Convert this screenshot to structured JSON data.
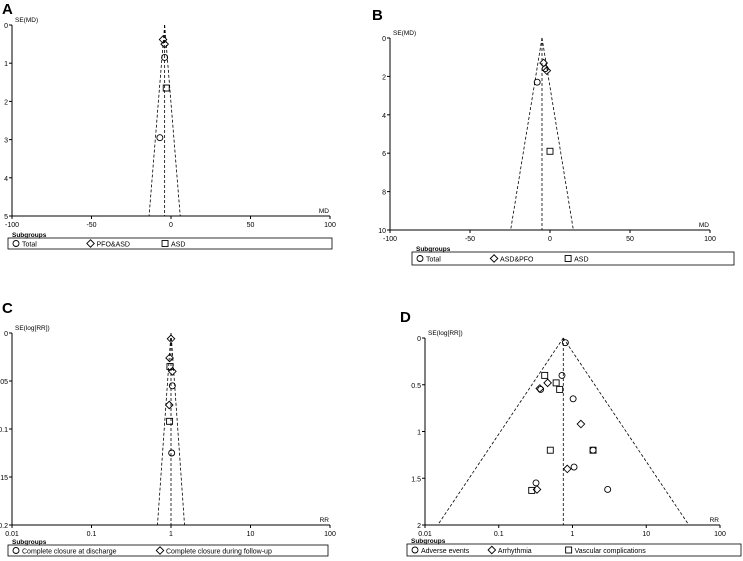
{
  "chart_data": [
    {
      "letter": "A",
      "type": "scatter",
      "funnel": true,
      "xscale": "linear",
      "xlim": [
        -100,
        100
      ],
      "ylim": [
        0,
        5
      ],
      "yreversed": true,
      "ylabel": "SE(MD)",
      "xlabel": "MD",
      "xticks": [
        -100,
        -50,
        0,
        50,
        100
      ],
      "xtick_labels": [
        "-100",
        "-50",
        "0",
        "50",
        "100"
      ],
      "yticks": [
        0,
        1,
        2,
        3,
        4,
        5
      ],
      "ytick_labels": [
        "0",
        "1",
        "2",
        "3",
        "4",
        "5"
      ],
      "pooled": -4,
      "legend_title": "Subgroups",
      "legend": [
        {
          "name": "Total",
          "marker": "circle"
        },
        {
          "name": "PFO&ASD",
          "marker": "diamond"
        },
        {
          "name": "ASD",
          "marker": "square"
        }
      ],
      "series": [
        {
          "name": "Total",
          "marker": "circle",
          "points": [
            {
              "x": -4,
              "y": 0.85
            },
            {
              "x": -7,
              "y": 2.95
            }
          ]
        },
        {
          "name": "PFO&ASD",
          "marker": "diamond",
          "points": [
            {
              "x": -5,
              "y": 0.38
            },
            {
              "x": -4,
              "y": 0.5
            }
          ]
        },
        {
          "name": "ASD",
          "marker": "square",
          "points": [
            {
              "x": -3,
              "y": 1.65
            }
          ]
        }
      ]
    },
    {
      "letter": "B",
      "type": "scatter",
      "funnel": true,
      "xscale": "linear",
      "xlim": [
        -100,
        100
      ],
      "ylim": [
        0,
        10
      ],
      "yreversed": true,
      "ylabel": "SE(MD)",
      "xlabel": "MD",
      "xticks": [
        -100,
        -50,
        0,
        50,
        100
      ],
      "xtick_labels": [
        "-100",
        "-50",
        "0",
        "50",
        "100"
      ],
      "yticks": [
        0,
        2,
        4,
        6,
        8,
        10
      ],
      "ytick_labels": [
        "0",
        "2",
        "4",
        "6",
        "8",
        "10"
      ],
      "pooled": -5,
      "legend_title": "Subgroups",
      "legend": [
        {
          "name": "Total",
          "marker": "circle"
        },
        {
          "name": "ASD&PFO",
          "marker": "diamond"
        },
        {
          "name": "ASD",
          "marker": "square"
        }
      ],
      "series": [
        {
          "name": "Total",
          "marker": "circle",
          "points": [
            {
              "x": -8,
              "y": 2.3
            },
            {
              "x": -3,
              "y": 1.6
            }
          ]
        },
        {
          "name": "ASD&PFO",
          "marker": "diamond",
          "points": [
            {
              "x": -4,
              "y": 1.3
            },
            {
              "x": -2,
              "y": 1.7
            }
          ]
        },
        {
          "name": "ASD",
          "marker": "square",
          "points": [
            {
              "x": 0,
              "y": 5.9
            }
          ]
        }
      ]
    },
    {
      "letter": "C",
      "type": "scatter",
      "funnel": true,
      "xscale": "log",
      "xlim": [
        0.01,
        100
      ],
      "ylim": [
        0,
        0.2
      ],
      "yreversed": true,
      "ylabel": "SE(log[RR])",
      "xlabel": "RR",
      "xticks": [
        0.01,
        0.1,
        1,
        10,
        100
      ],
      "xtick_labels": [
        "0.01",
        "0.1",
        "1",
        "10",
        "100"
      ],
      "yticks": [
        0,
        0.05,
        0.1,
        0.15,
        0.2
      ],
      "ytick_labels": [
        "0",
        "0.05",
        "0.1",
        "0.15",
        "0.2"
      ],
      "pooled": 1,
      "legend_title": "Subgroups",
      "legend": [
        {
          "name": "Complete closure at discharge",
          "marker": "circle"
        },
        {
          "name": "Complete closure during follow-up",
          "marker": "diamond"
        }
      ],
      "series": [
        {
          "name": "Complete closure at discharge",
          "marker": "circle",
          "points": [
            {
              "x": 1.04,
              "y": 0.055
            },
            {
              "x": 1.02,
              "y": 0.125
            }
          ]
        },
        {
          "name": "Complete closure during follow-up",
          "marker": "diamond",
          "points": [
            {
              "x": 1.0,
              "y": 0.006
            },
            {
              "x": 0.96,
              "y": 0.026
            },
            {
              "x": 1.04,
              "y": 0.04
            },
            {
              "x": 0.95,
              "y": 0.075
            }
          ]
        },
        {
          "name": "",
          "marker": "square",
          "points": [
            {
              "x": 0.97,
              "y": 0.035
            },
            {
              "x": 0.96,
              "y": 0.092
            }
          ]
        }
      ]
    },
    {
      "letter": "D",
      "type": "scatter",
      "funnel": true,
      "xscale": "log",
      "xlim": [
        0.01,
        100
      ],
      "ylim": [
        0,
        2
      ],
      "yreversed": true,
      "ylabel": "SE(log[RR])",
      "xlabel": "RR",
      "xticks": [
        0.01,
        0.1,
        1,
        10,
        100
      ],
      "xtick_labels": [
        "0.01",
        "0.1",
        "1",
        "10",
        "100"
      ],
      "yticks": [
        0,
        0.5,
        1,
        1.5,
        2
      ],
      "ytick_labels": [
        "0",
        "0.5",
        "1",
        "1.5",
        "2"
      ],
      "pooled": 0.75,
      "legend_title": "Subgroups",
      "legend": [
        {
          "name": "Adverse events",
          "marker": "circle"
        },
        {
          "name": "Arrhythmia",
          "marker": "diamond"
        },
        {
          "name": "Vascular complications",
          "marker": "square"
        }
      ],
      "series": [
        {
          "name": "Adverse events",
          "marker": "circle",
          "points": [
            {
              "x": 0.8,
              "y": 0.05
            },
            {
              "x": 0.72,
              "y": 0.4
            },
            {
              "x": 0.37,
              "y": 0.55
            },
            {
              "x": 1.02,
              "y": 0.65
            },
            {
              "x": 1.9,
              "y": 1.2
            },
            {
              "x": 1.05,
              "y": 1.38
            },
            {
              "x": 0.32,
              "y": 1.55
            },
            {
              "x": 3.0,
              "y": 1.62
            }
          ]
        },
        {
          "name": "Arrhythmia",
          "marker": "diamond",
          "points": [
            {
              "x": 0.46,
              "y": 0.48
            },
            {
              "x": 0.36,
              "y": 0.54
            },
            {
              "x": 1.3,
              "y": 0.92
            },
            {
              "x": 0.85,
              "y": 1.4
            },
            {
              "x": 0.33,
              "y": 1.62
            }
          ]
        },
        {
          "name": "Vascular complications",
          "marker": "square",
          "points": [
            {
              "x": 0.42,
              "y": 0.4
            },
            {
              "x": 0.6,
              "y": 0.48
            },
            {
              "x": 0.67,
              "y": 0.55
            },
            {
              "x": 0.5,
              "y": 1.2
            },
            {
              "x": 1.9,
              "y": 1.2
            },
            {
              "x": 0.28,
              "y": 1.63
            }
          ]
        }
      ]
    }
  ]
}
